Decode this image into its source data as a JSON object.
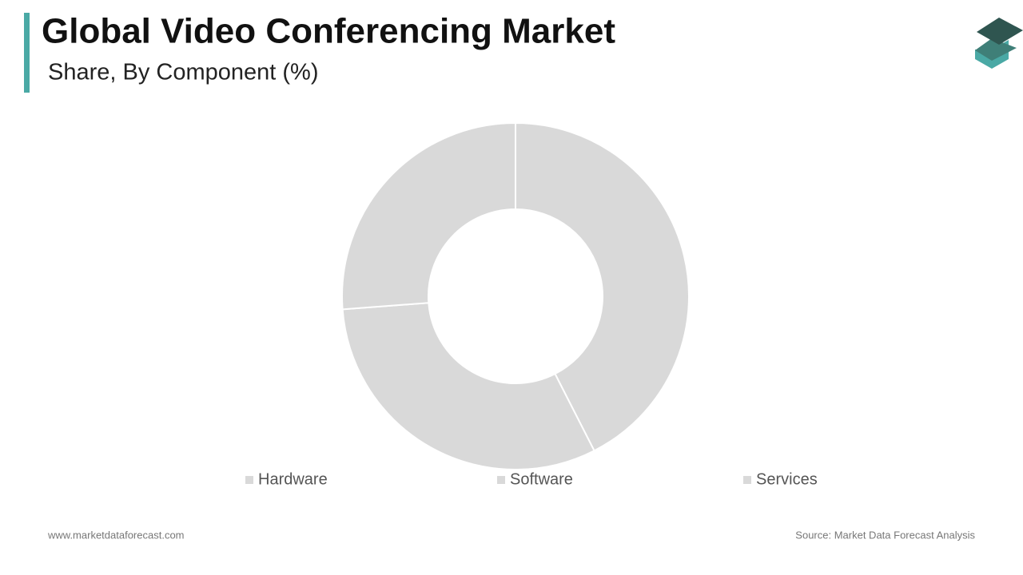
{
  "chart_data": {
    "type": "pie",
    "title": "Global Video Conferencing Market",
    "subtitle": "Share, By Component (%)",
    "categories": [
      "Hardware",
      "Software",
      "Services"
    ],
    "values": [
      42.5,
      31.3,
      26.2
    ],
    "colors": [
      "#d9d9d9",
      "#d9d9d9",
      "#d9d9d9"
    ],
    "donut": true
  },
  "footer": {
    "website": "www.marketdataforecast.com",
    "source": "Source: Market Data Forecast Analysis"
  }
}
